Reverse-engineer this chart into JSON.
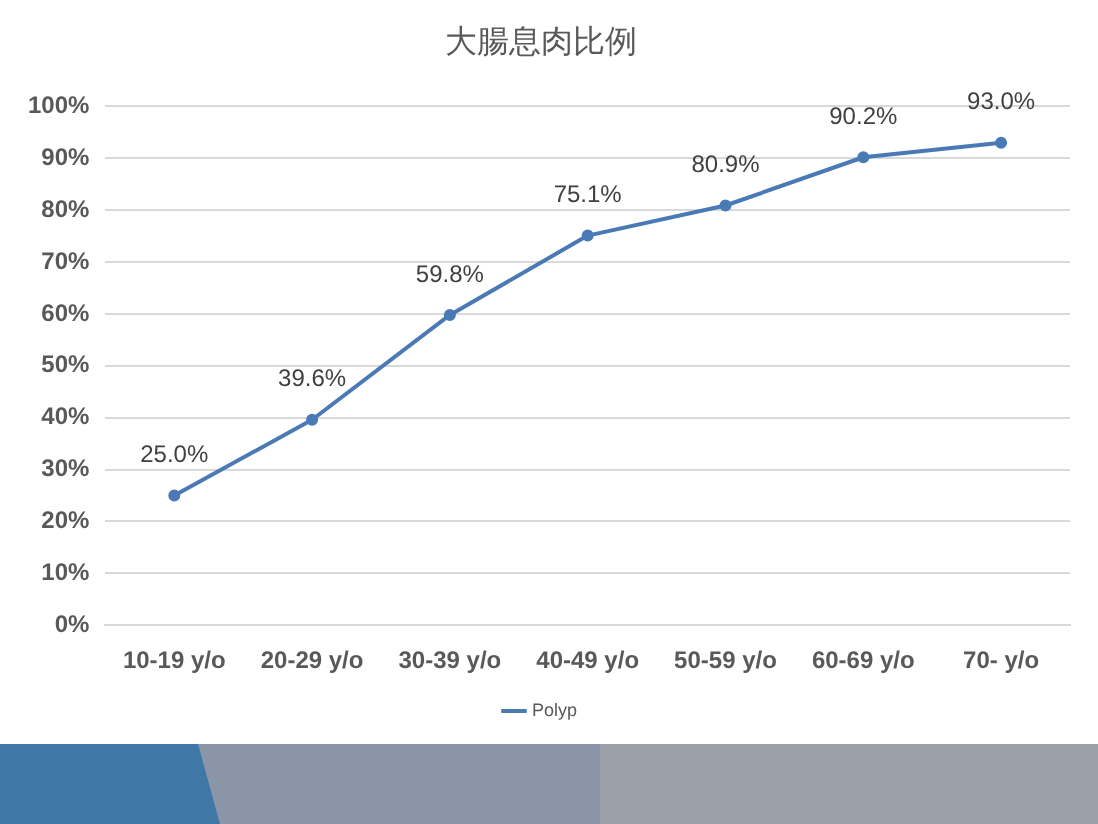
{
  "chart_data": {
    "type": "line",
    "title": "大腸息肉比例",
    "categories": [
      "10-19 y/o",
      "20-29 y/o",
      "30-39 y/o",
      "40-49 y/o",
      "50-59 y/o",
      "60-69 y/o",
      "70- y/o"
    ],
    "series": [
      {
        "name": "Polyp",
        "color": "#4a7ab5",
        "values": [
          25.0,
          39.6,
          59.8,
          75.1,
          80.9,
          90.2,
          93.0
        ],
        "value_labels": [
          "25.0%",
          "39.6%",
          "59.8%",
          "75.1%",
          "80.9%",
          "90.2%",
          "93.0%"
        ]
      }
    ],
    "ylim": [
      0,
      100
    ],
    "yticks": [
      {
        "value": 0,
        "label": "0%"
      },
      {
        "value": 10,
        "label": "10%"
      },
      {
        "value": 20,
        "label": "20%"
      },
      {
        "value": 30,
        "label": "30%"
      },
      {
        "value": 40,
        "label": "40%"
      },
      {
        "value": 50,
        "label": "50%"
      },
      {
        "value": 60,
        "label": "60%"
      },
      {
        "value": 70,
        "label": "70%"
      },
      {
        "value": 80,
        "label": "80%"
      },
      {
        "value": 90,
        "label": "90%"
      },
      {
        "value": 100,
        "label": "100%"
      }
    ],
    "grid": "y",
    "legend": "bottom",
    "marker": "circle",
    "line_style": "solid"
  }
}
